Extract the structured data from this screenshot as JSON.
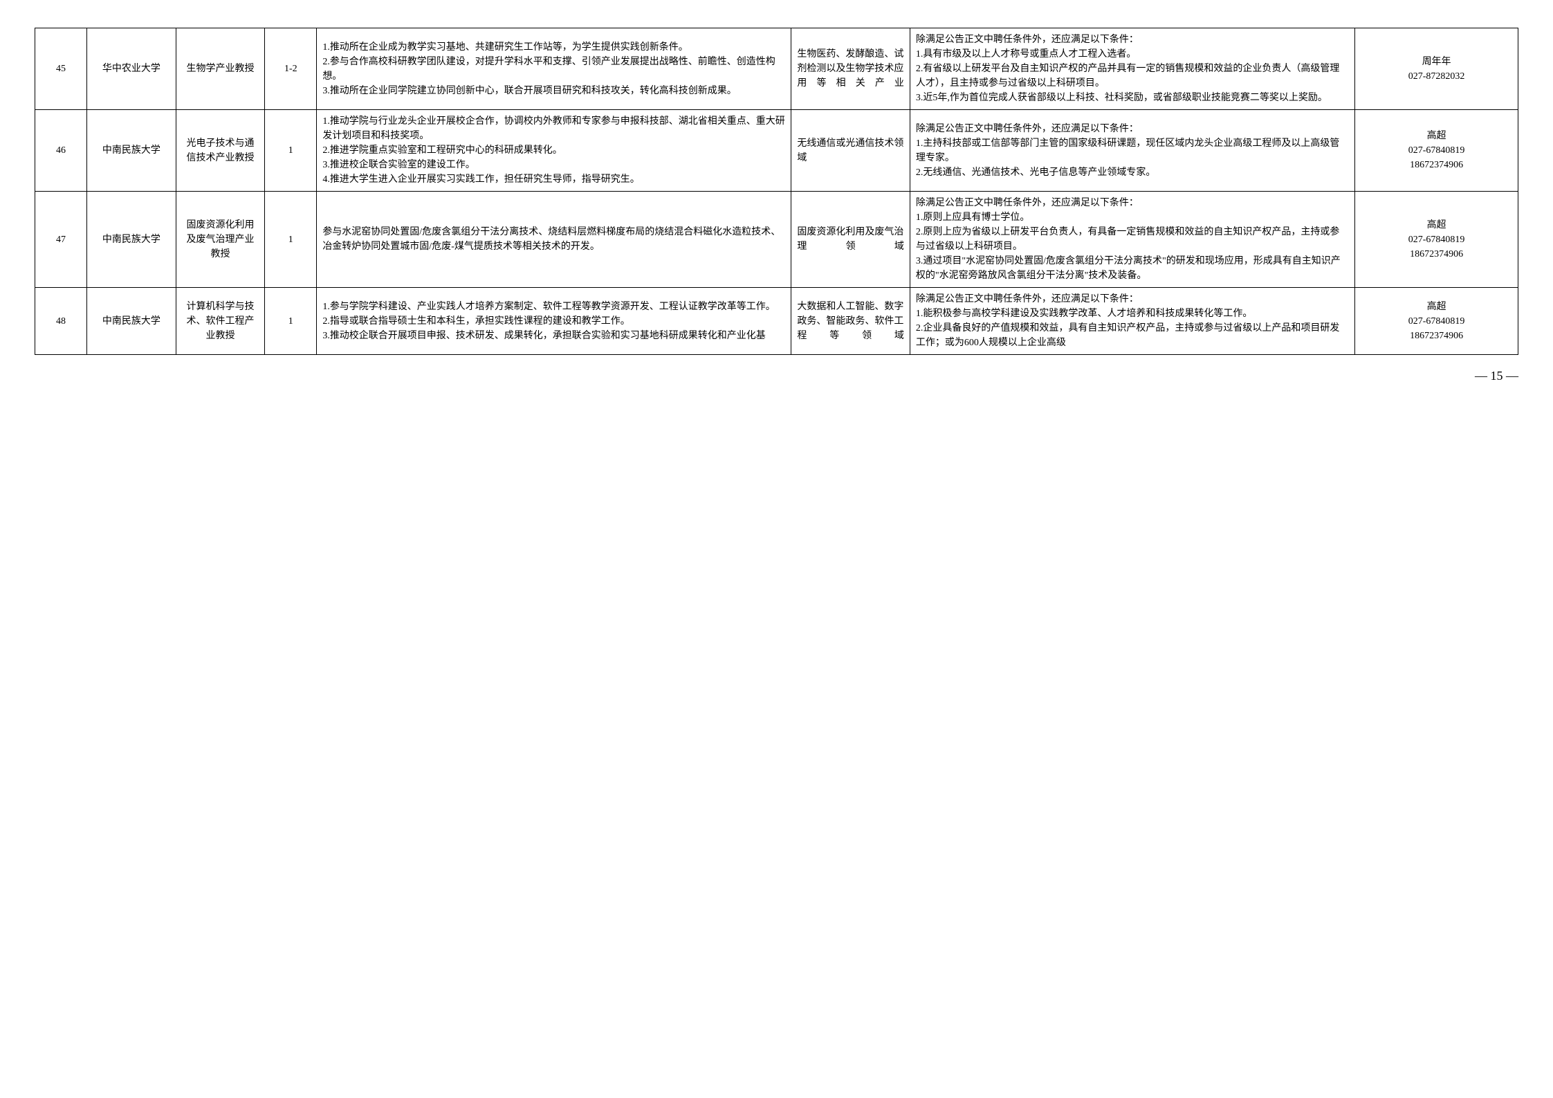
{
  "page_number": "— 15 —",
  "rows": [
    {
      "idx": "45",
      "univ": "华中农业大学",
      "title": "生物学产业教授",
      "num": "1-2",
      "duties": "1.推动所在企业成为教学实习基地、共建研究生工作站等，为学生提供实践创新条件。\n2.参与合作高校科研教学团队建设，对提升学科水平和支撑、引领产业发展提出战略性、前瞻性、创造性构想。\n3.推动所在企业同学院建立协同创新中心，联合开展项目研究和科技攻关，转化高科技创新成果。",
      "field": "生物医药、发酵酿造、试剂检测以及生物学技术应用等相关产业",
      "req": "除满足公告正文中聘任条件外，还应满足以下条件：\n1.具有市级及以上人才称号或重点人才工程入选者。\n2.有省级以上研发平台及自主知识产权的产品并具有一定的销售规模和效益的企业负责人（高级管理人才），且主持或参与过省级以上科研项目。\n3.近5年,作为首位完成人获省部级以上科技、社科奖励，或省部级职业技能竞赛二等奖以上奖励。",
      "contact": "周年年\n027-87282032"
    },
    {
      "idx": "46",
      "univ": "中南民族大学",
      "title": "光电子技术与通信技术产业教授",
      "num": "1",
      "duties": "1.推动学院与行业龙头企业开展校企合作，协调校内外教师和专家参与申报科技部、湖北省相关重点、重大研发计划项目和科技奖项。\n2.推进学院重点实验室和工程研究中心的科研成果转化。\n3.推进校企联合实验室的建设工作。\n4.推进大学生进入企业开展实习实践工作，担任研究生导师，指导研究生。",
      "field": "无线通信或光通信技术领域",
      "req": "除满足公告正文中聘任条件外，还应满足以下条件：\n1.主持科技部或工信部等部门主管的国家级科研课题，现任区域内龙头企业高级工程师及以上高级管理专家。\n2.无线通信、光通信技术、光电子信息等产业领域专家。",
      "contact": "高超\n027-67840819\n18672374906"
    },
    {
      "idx": "47",
      "univ": "中南民族大学",
      "title": "固废资源化利用及废气治理产业教授",
      "num": "1",
      "duties": "参与水泥窑协同处置固/危废含氯组分干法分离技术、烧结料层燃料梯度布局的烧结混合料磁化水造粒技术、冶金转炉协同处置城市固/危废-煤气提质技术等相关技术的开发。",
      "field": "固废资源化利用及废气治理领域",
      "req": "除满足公告正文中聘任条件外，还应满足以下条件：\n1.原则上应具有博士学位。\n2.原则上应为省级以上研发平台负责人，有具备一定销售规模和效益的自主知识产权产品，主持或参与过省级以上科研项目。\n3.通过项目\"水泥窑协同处置固/危废含氯组分干法分离技术\"的研发和现场应用，形成具有自主知识产权的\"水泥窑旁路放风含氯组分干法分离\"技术及装备。",
      "contact": "高超\n027-67840819\n18672374906"
    },
    {
      "idx": "48",
      "univ": "中南民族大学",
      "title": "计算机科学与技术、软件工程产业教授",
      "num": "1",
      "duties": "1.参与学院学科建设、产业实践人才培养方案制定、软件工程等教学资源开发、工程认证教学改革等工作。\n2.指导或联合指导硕士生和本科生，承担实践性课程的建设和教学工作。\n3.推动校企联合开展项目申报、技术研发、成果转化，承担联合实验和实习基地科研成果转化和产业化基",
      "field": "大数据和人工智能、数字政务、智能政务、软件工程等领域",
      "req": "除满足公告正文中聘任条件外，还应满足以下条件：\n1.能积极参与高校学科建设及实践教学改革、人才培养和科技成果转化等工作。\n2.企业具备良好的产值规模和效益，具有自主知识产权产品，主持或参与过省级以上产品和项目研发工作；或为600人规模以上企业高级",
      "contact": "高超\n027-67840819\n18672374906"
    }
  ]
}
